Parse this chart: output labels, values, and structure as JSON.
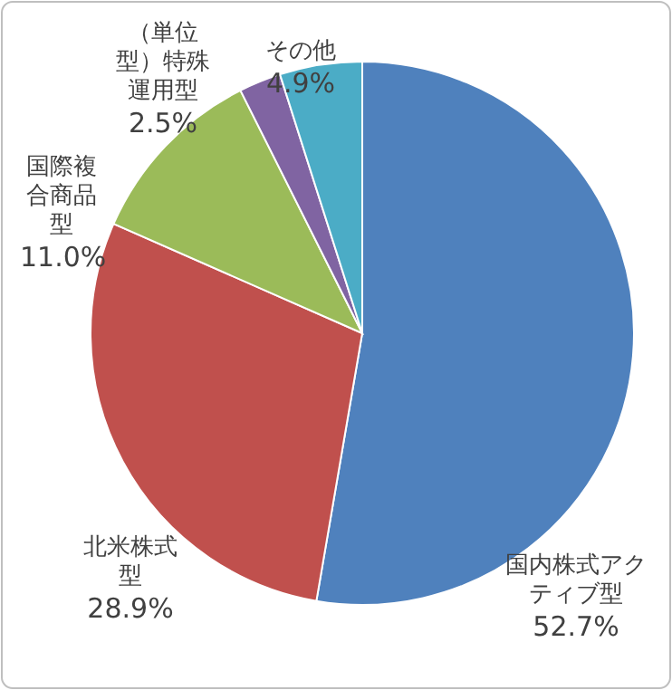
{
  "chart_data": {
    "type": "pie",
    "categories": [
      "国内株式アクティブ型",
      "北米株式型",
      "国際複合商品型",
      "（単位型）特殊運用型",
      "その他"
    ],
    "values": [
      52.7,
      28.9,
      11.0,
      2.5,
      4.9
    ],
    "colors": [
      "#4f81bd",
      "#c0504d",
      "#9bbb59",
      "#8064a2",
      "#4bacc6"
    ],
    "value_labels": [
      "52.7%",
      "28.9%",
      "11.0%",
      "2.5%",
      "4.9%"
    ]
  }
}
